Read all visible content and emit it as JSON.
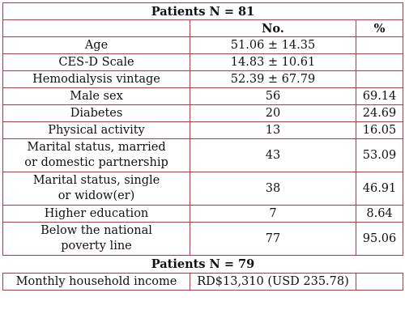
{
  "header": {
    "title": "Patients N = 81"
  },
  "columns": {
    "label": "",
    "count": "No.",
    "percent": "%"
  },
  "rows": [
    {
      "label": "Age",
      "count": "51.06 ± 14.35",
      "percent": ""
    },
    {
      "label": "CES-D Scale",
      "count": "14.83 ± 10.61",
      "percent": ""
    },
    {
      "label": "Hemodialysis vintage",
      "count": "52.39 ± 67.79",
      "percent": ""
    },
    {
      "label": "Male sex",
      "count": "56",
      "percent": "69.14"
    },
    {
      "label": "Diabetes",
      "count": "20",
      "percent": "24.69"
    },
    {
      "label": "Physical activity",
      "count": "13",
      "percent": "16.05"
    },
    {
      "label_line1": "Marital status, married",
      "label_line2": "or domestic partnership",
      "count": "43",
      "percent": "53.09"
    },
    {
      "label_line1": "Marital status, single",
      "label_line2": "or widow(er)",
      "count": "38",
      "percent": "46.91"
    },
    {
      "label": "Higher education",
      "count": "7",
      "percent": "8.64"
    },
    {
      "label_line1": "Below the national",
      "label_line2": "poverty line",
      "count": "77",
      "percent": "95.06"
    }
  ],
  "subheader": {
    "title": "Patients N = 79"
  },
  "income": {
    "label": "Monthly household income",
    "value": "RD$13,310 (USD 235.78)",
    "percent": ""
  }
}
